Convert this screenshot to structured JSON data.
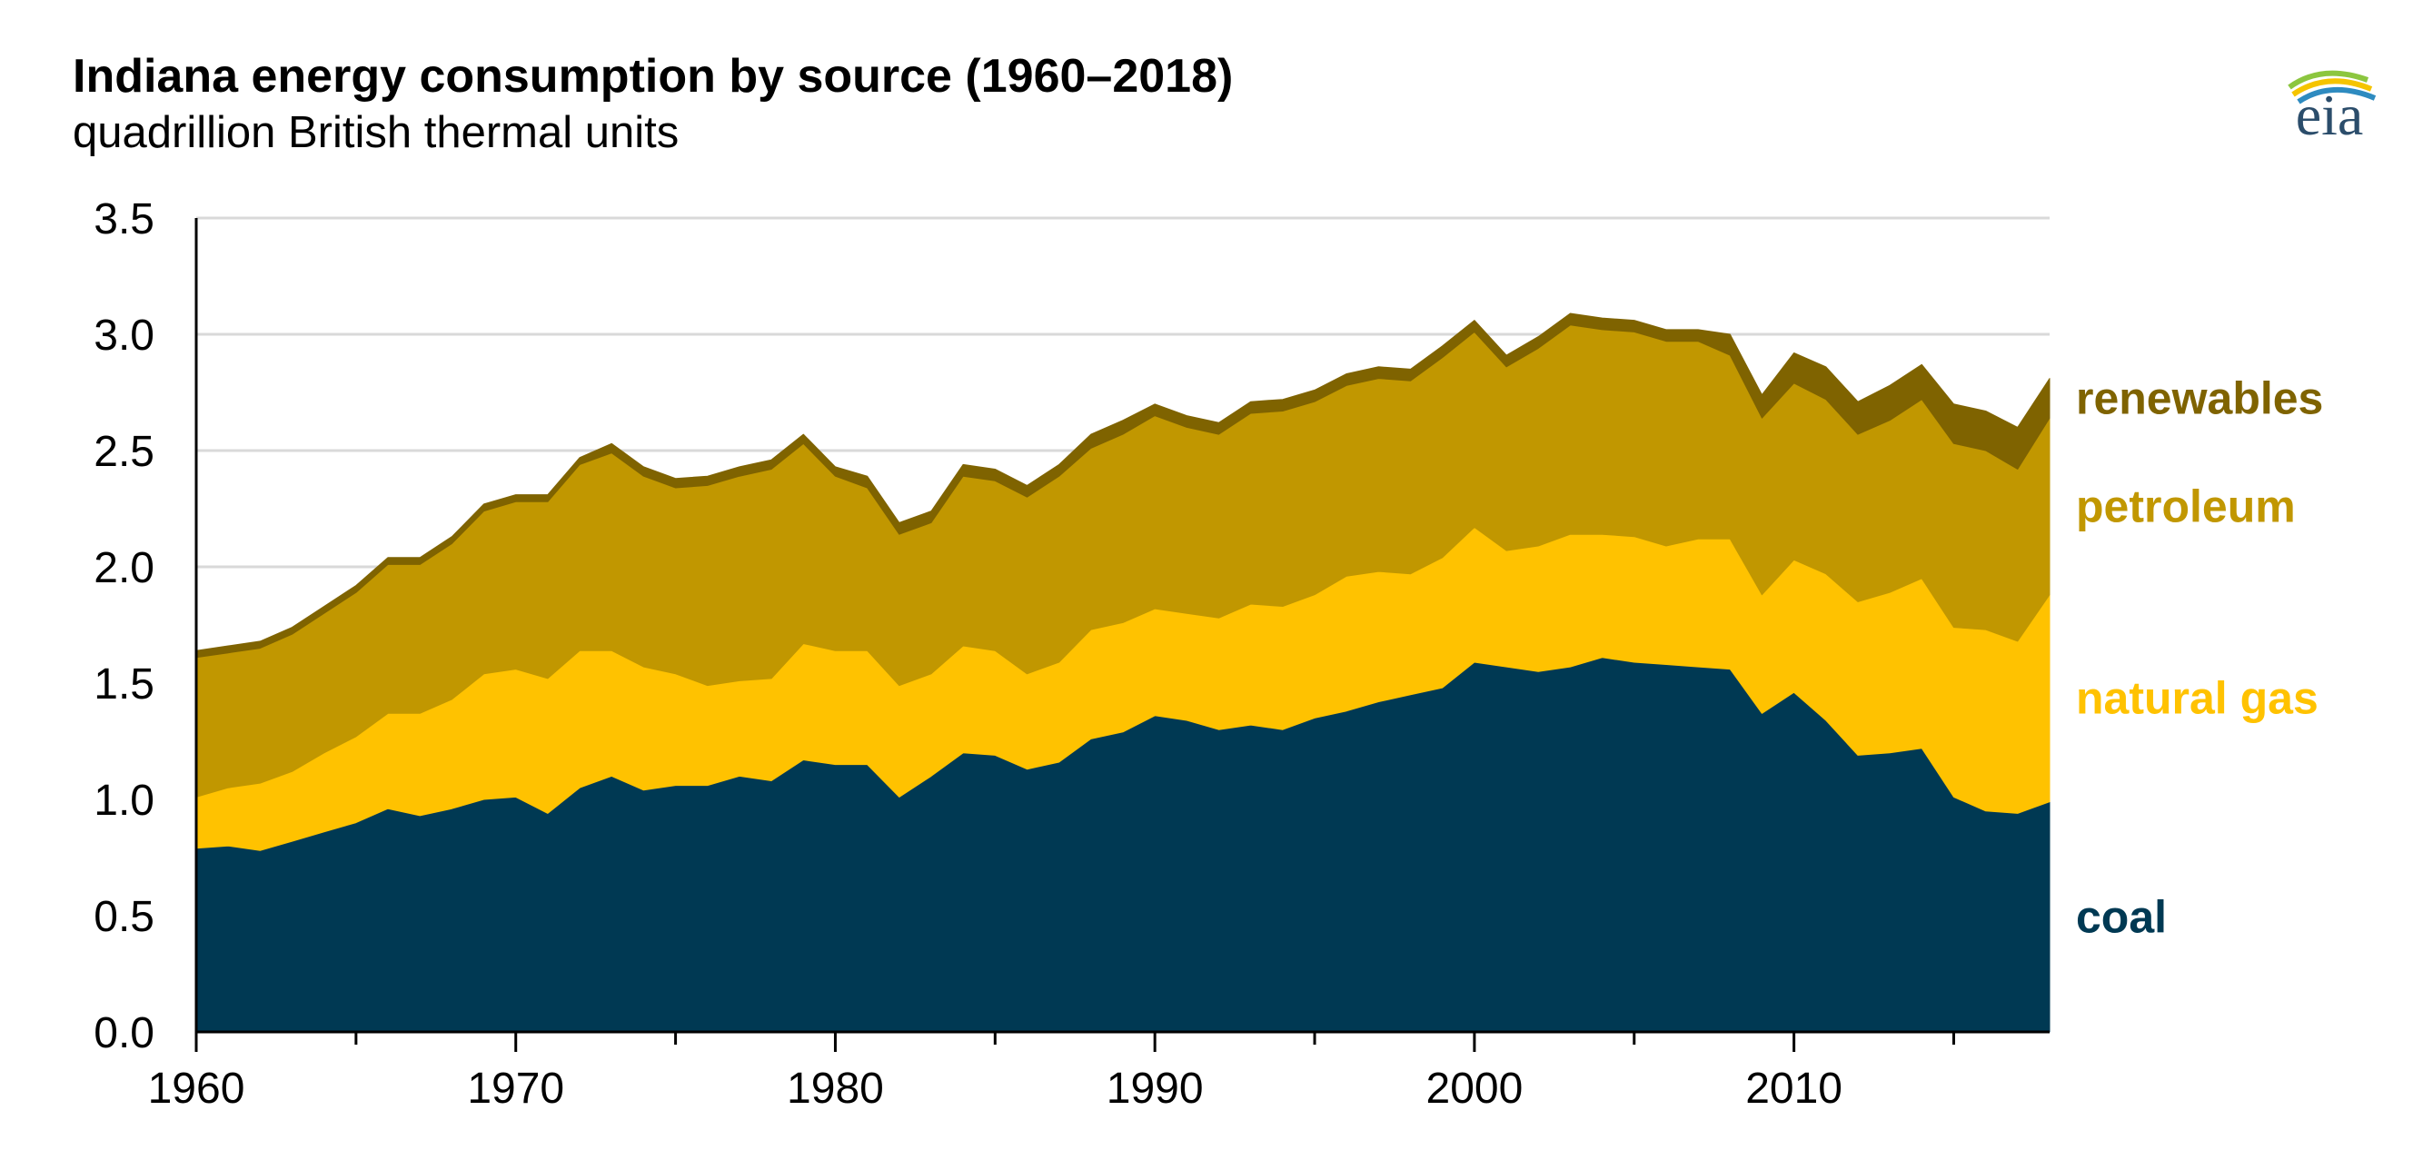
{
  "chart_data": {
    "type": "area",
    "stacked": true,
    "title": "Indiana energy consumption by source (1960–2018)",
    "subtitle": "quadrillion British thermal units",
    "xlabel": "",
    "ylabel": "",
    "xlim": [
      1960,
      2018
    ],
    "ylim": [
      0,
      3.5
    ],
    "grid": true,
    "x_ticks": [
      "1960",
      "1970",
      "1980",
      "1990",
      "2000",
      "2010"
    ],
    "y_ticks": [
      "0.0",
      "0.5",
      "1.0",
      "1.5",
      "2.0",
      "2.5",
      "3.0",
      "3.5"
    ],
    "x": [
      1960,
      1961,
      1962,
      1963,
      1964,
      1965,
      1966,
      1967,
      1968,
      1969,
      1970,
      1971,
      1972,
      1973,
      1974,
      1975,
      1976,
      1977,
      1978,
      1979,
      1980,
      1981,
      1982,
      1983,
      1984,
      1985,
      1986,
      1987,
      1988,
      1989,
      1990,
      1991,
      1992,
      1993,
      1994,
      1995,
      1996,
      1997,
      1998,
      1999,
      2000,
      2001,
      2002,
      2003,
      2004,
      2005,
      2006,
      2007,
      2008,
      2009,
      2010,
      2011,
      2012,
      2013,
      2014,
      2015,
      2016,
      2017,
      2018
    ],
    "series": [
      {
        "name": "coal",
        "color": "#003953",
        "values": [
          0.79,
          0.8,
          0.78,
          0.82,
          0.86,
          0.9,
          0.96,
          0.93,
          0.96,
          1.0,
          1.01,
          0.94,
          1.05,
          1.1,
          1.04,
          1.06,
          1.06,
          1.1,
          1.08,
          1.17,
          1.15,
          1.15,
          1.01,
          1.1,
          1.2,
          1.19,
          1.13,
          1.16,
          1.26,
          1.29,
          1.36,
          1.34,
          1.3,
          1.32,
          1.3,
          1.35,
          1.38,
          1.42,
          1.45,
          1.48,
          1.59,
          1.57,
          1.55,
          1.57,
          1.61,
          1.59,
          1.58,
          1.57,
          1.56,
          1.37,
          1.46,
          1.34,
          1.19,
          1.2,
          1.22,
          1.01,
          0.95,
          0.94,
          0.99
        ]
      },
      {
        "name": "natural gas",
        "color": "#ffc200",
        "values": [
          0.22,
          0.25,
          0.29,
          0.3,
          0.34,
          0.37,
          0.41,
          0.44,
          0.47,
          0.54,
          0.55,
          0.58,
          0.59,
          0.54,
          0.53,
          0.48,
          0.43,
          0.41,
          0.44,
          0.5,
          0.49,
          0.49,
          0.48,
          0.44,
          0.46,
          0.45,
          0.41,
          0.43,
          0.47,
          0.47,
          0.46,
          0.46,
          0.48,
          0.52,
          0.53,
          0.53,
          0.58,
          0.56,
          0.52,
          0.56,
          0.58,
          0.5,
          0.54,
          0.57,
          0.53,
          0.54,
          0.51,
          0.55,
          0.56,
          0.51,
          0.57,
          0.63,
          0.66,
          0.69,
          0.73,
          0.73,
          0.78,
          0.74,
          0.89
        ]
      },
      {
        "name": "petroleum",
        "color": "#c19700",
        "values": [
          0.6,
          0.58,
          0.58,
          0.59,
          0.6,
          0.62,
          0.64,
          0.64,
          0.67,
          0.7,
          0.72,
          0.76,
          0.8,
          0.85,
          0.82,
          0.8,
          0.86,
          0.88,
          0.9,
          0.86,
          0.75,
          0.7,
          0.65,
          0.65,
          0.73,
          0.73,
          0.76,
          0.8,
          0.78,
          0.81,
          0.83,
          0.8,
          0.79,
          0.82,
          0.84,
          0.83,
          0.82,
          0.83,
          0.83,
          0.86,
          0.84,
          0.79,
          0.85,
          0.9,
          0.88,
          0.88,
          0.88,
          0.85,
          0.79,
          0.76,
          0.76,
          0.75,
          0.72,
          0.74,
          0.77,
          0.79,
          0.77,
          0.74,
          0.76
        ]
      },
      {
        "name": "renewables",
        "color": "#7f6300",
        "values": [
          0.03,
          0.03,
          0.03,
          0.03,
          0.03,
          0.03,
          0.03,
          0.03,
          0.03,
          0.03,
          0.03,
          0.03,
          0.03,
          0.04,
          0.04,
          0.04,
          0.04,
          0.04,
          0.04,
          0.04,
          0.04,
          0.05,
          0.05,
          0.05,
          0.05,
          0.05,
          0.05,
          0.05,
          0.06,
          0.06,
          0.05,
          0.05,
          0.05,
          0.05,
          0.05,
          0.05,
          0.05,
          0.05,
          0.05,
          0.05,
          0.05,
          0.05,
          0.05,
          0.05,
          0.05,
          0.05,
          0.05,
          0.05,
          0.09,
          0.1,
          0.13,
          0.14,
          0.14,
          0.15,
          0.15,
          0.17,
          0.17,
          0.18,
          0.17
        ]
      }
    ],
    "legend": "right-inline"
  },
  "logo": {
    "text": "eia"
  }
}
